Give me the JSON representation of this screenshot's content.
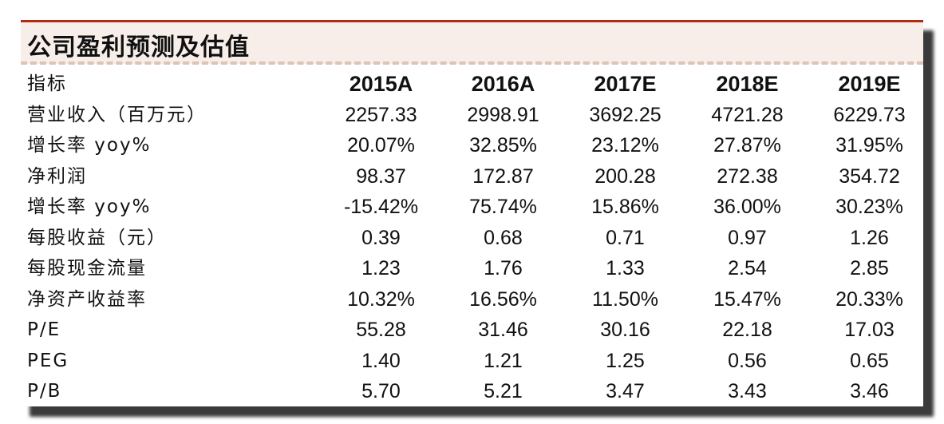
{
  "title": "公司盈利预测及估值",
  "table": {
    "header": {
      "label": "指标",
      "years": [
        "2015A",
        "2016A",
        "2017E",
        "2018E",
        "2019E"
      ]
    },
    "rows": [
      {
        "label": "营业收入（百万元）",
        "values": [
          "2257.33",
          "2998.91",
          "3692.25",
          "4721.28",
          "6229.73"
        ]
      },
      {
        "label": "增长率 yoy%",
        "values": [
          "20.07%",
          "32.85%",
          "23.12%",
          "27.87%",
          "31.95%"
        ]
      },
      {
        "label": "净利润",
        "values": [
          "98.37",
          "172.87",
          "200.28",
          "272.38",
          "354.72"
        ]
      },
      {
        "label": "增长率 yoy%",
        "values": [
          "-15.42%",
          "75.74%",
          "15.86%",
          "36.00%",
          "30.23%"
        ]
      },
      {
        "label": "每股收益（元）",
        "values": [
          "0.39",
          "0.68",
          "0.71",
          "0.97",
          "1.26"
        ]
      },
      {
        "label": "每股现金流量",
        "values": [
          "1.23",
          "1.76",
          "1.33",
          "2.54",
          "2.85"
        ]
      },
      {
        "label": "净资产收益率",
        "values": [
          "10.32%",
          "16.56%",
          "11.50%",
          "15.47%",
          "20.33%"
        ]
      },
      {
        "label": "P/E",
        "values": [
          "55.28",
          "31.46",
          "30.16",
          "22.18",
          "17.03"
        ]
      },
      {
        "label": "PEG",
        "values": [
          "1.40",
          "1.21",
          "1.25",
          "0.56",
          "0.65"
        ]
      },
      {
        "label": "P/B",
        "values": [
          "5.70",
          "5.21",
          "3.47",
          "3.43",
          "3.46"
        ]
      }
    ]
  }
}
